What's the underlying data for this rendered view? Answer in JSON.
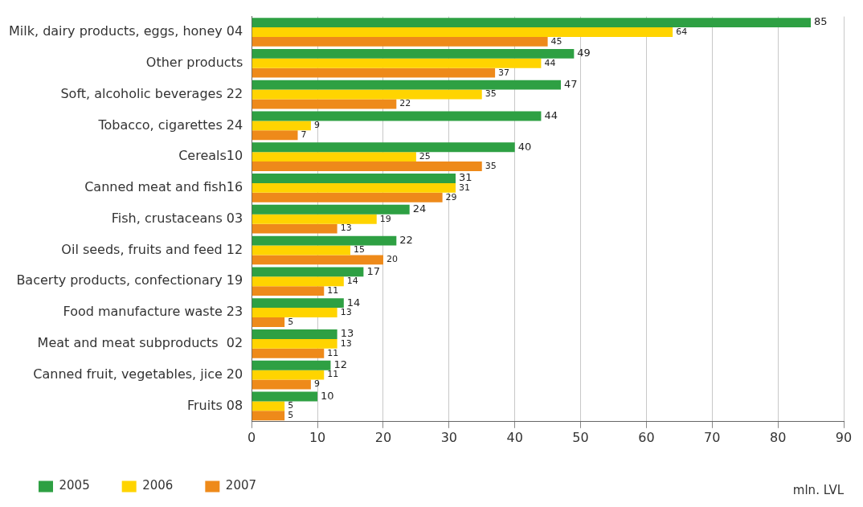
{
  "chart_data": {
    "type": "bar",
    "orientation": "horizontal",
    "categories": [
      "Milk, dairy products, eggs, honey 04",
      "Other products",
      "Soft, alcoholic beverages 22",
      "Tobacco, cigarettes 24",
      "Cereals10",
      "Canned meat and fish16",
      "Fish, crustaceans 03",
      "Oil seeds, fruits and feed 12",
      "Bacerty products, confectionary 19",
      "Food manufacture waste 23",
      "Meat and meat subproducts  02",
      "Canned fruit, vegetables, jice 20",
      "Fruits 08"
    ],
    "series": [
      {
        "name": "2005",
        "color": "#2ea043",
        "values": [
          85,
          49,
          47,
          44,
          40,
          31,
          24,
          22,
          17,
          14,
          13,
          12,
          10
        ]
      },
      {
        "name": "2006",
        "color": "#ffd400",
        "values": [
          64,
          44,
          35,
          9,
          25,
          31,
          19,
          15,
          14,
          13,
          13,
          11,
          5
        ]
      },
      {
        "name": "2007",
        "color": "#ee8a1a",
        "values": [
          45,
          37,
          22,
          7,
          35,
          29,
          13,
          20,
          11,
          5,
          11,
          9,
          5
        ]
      }
    ],
    "xlim": [
      0,
      90
    ],
    "xticks": [
      0,
      10,
      20,
      30,
      40,
      50,
      60,
      70,
      80,
      90
    ],
    "grid": "x",
    "legend": "bottom left",
    "data_labels": true,
    "annotations": [
      "mln. LVL"
    ]
  }
}
